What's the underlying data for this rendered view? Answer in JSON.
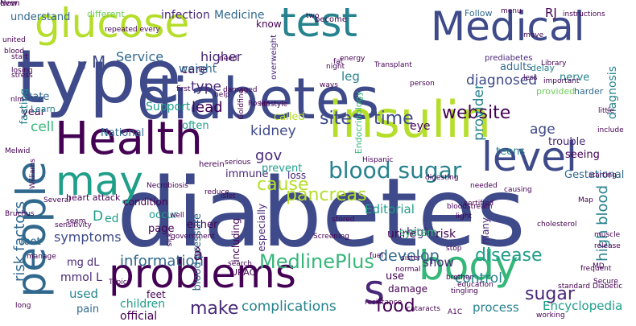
{
  "colors": {
    "background": "#ffffff",
    "purple_dark": "#440154",
    "purple": "#482878",
    "indigo": "#3e4a89",
    "blue": "#31688e",
    "teal": "#26828e",
    "green_teal": "#1f9e89",
    "green": "#35b779",
    "lime_green": "#6ece58",
    "yellow_green": "#b5de2b",
    "yellow": "#fde725"
  },
  "words": [
    {
      "text": "diabetes",
      "color": "indigo"
    },
    {
      "text": "type",
      "color": "indigo"
    },
    {
      "text": "diabetes",
      "color": "indigo"
    },
    {
      "text": "Health",
      "color": "purple_dark"
    },
    {
      "text": "insulin",
      "color": "yellow_green"
    },
    {
      "text": "glucose",
      "color": "yellow_green"
    },
    {
      "text": "test",
      "color": "teal"
    },
    {
      "text": "Medical",
      "color": "indigo"
    },
    {
      "text": "problems",
      "color": "purple_dark"
    },
    {
      "text": "body",
      "color": "green"
    },
    {
      "text": "people",
      "color": "blue"
    },
    {
      "text": "level",
      "color": "indigo"
    },
    {
      "text": "may",
      "color": "green_teal"
    },
    {
      "text": "s",
      "color": "purple"
    },
    {
      "text": "blood sugar",
      "color": "teal"
    },
    {
      "text": "website",
      "color": "purple_dark"
    },
    {
      "text": "MedlinePlus",
      "color": "green"
    },
    {
      "text": "information",
      "color": "blue"
    },
    {
      "text": "pancreas",
      "color": "yellow_green"
    },
    {
      "text": "cause",
      "color": "yellow_green"
    },
    {
      "text": "disease",
      "color": "green_teal"
    },
    {
      "text": "complications",
      "color": "teal"
    },
    {
      "text": "develop",
      "color": "blue"
    },
    {
      "text": "control",
      "color": "teal"
    },
    {
      "text": "food",
      "color": "purple_dark"
    },
    {
      "text": "risk factors",
      "color": "blue"
    },
    {
      "text": "high blood",
      "color": "teal"
    },
    {
      "text": "site",
      "color": "indigo"
    },
    {
      "text": "time",
      "color": "indigo"
    },
    {
      "text": "sugar",
      "color": "purple"
    },
    {
      "text": "make",
      "color": "purple"
    },
    {
      "text": "symptoms",
      "color": "indigo"
    },
    {
      "text": "kidney",
      "color": "indigo"
    },
    {
      "text": "leg",
      "color": "teal"
    },
    {
      "text": "diagnosed",
      "color": "indigo"
    },
    {
      "text": "higher",
      "color": "purple"
    },
    {
      "text": "Service",
      "color": "blue"
    },
    {
      "text": "type",
      "color": "purple"
    },
    {
      "text": "lead",
      "color": "purple_dark"
    },
    {
      "text": "provider",
      "color": "teal"
    },
    {
      "text": "age",
      "color": "indigo"
    },
    {
      "text": "infection",
      "color": "purple"
    },
    {
      "text": "Medicine",
      "color": "blue"
    },
    {
      "text": "care",
      "color": "purple_dark"
    },
    {
      "text": "weight",
      "color": "blue"
    },
    {
      "text": "Support",
      "color": "green_teal"
    },
    {
      "text": "gov",
      "color": "purple"
    },
    {
      "text": "Editorial",
      "color": "green_teal"
    },
    {
      "text": "used",
      "color": "teal"
    },
    {
      "text": "cell",
      "color": "green"
    },
    {
      "text": "Encyclopedia",
      "color": "green_teal"
    },
    {
      "text": "process",
      "color": "teal"
    },
    {
      "text": "children",
      "color": "green_teal"
    },
    {
      "text": "official",
      "color": "purple_dark"
    },
    {
      "text": "show",
      "color": "purple"
    },
    {
      "text": "mg dL",
      "color": "purple"
    },
    {
      "text": "mmol L",
      "color": "purple"
    },
    {
      "text": "D",
      "color": "green_teal"
    },
    {
      "text": "ed",
      "color": "green_teal"
    },
    {
      "text": "â",
      "color": "purple_dark"
    },
    {
      "text": "M",
      "color": "indigo"
    },
    {
      "text": "U",
      "color": "indigo"
    },
    {
      "text": "RJ",
      "color": "purple_dark"
    },
    {
      "text": "adults",
      "color": "blue"
    },
    {
      "text": "nerve",
      "color": "teal"
    },
    {
      "text": "diagnosis",
      "color": "teal"
    },
    {
      "text": "high",
      "color": "purple"
    },
    {
      "text": "urine",
      "color": "purple_dark"
    },
    {
      "text": "risk",
      "color": "purple_dark"
    },
    {
      "text": "system",
      "color": "green"
    },
    {
      "text": "many",
      "color": "purple"
    },
    {
      "text": "eye",
      "color": "purple_dark"
    },
    {
      "text": "teens",
      "color": "teal"
    },
    {
      "text": "trouble",
      "color": "purple"
    },
    {
      "text": "seeing",
      "color": "purple_dark"
    },
    {
      "text": "Gestational",
      "color": "blue"
    },
    {
      "text": "immune",
      "color": "purple"
    },
    {
      "text": "loss",
      "color": "purple"
    },
    {
      "text": "prevent",
      "color": "green_teal"
    },
    {
      "text": "called",
      "color": "yellow_green"
    },
    {
      "text": "National",
      "color": "blue"
    },
    {
      "text": "often",
      "color": "green_teal"
    },
    {
      "text": "year",
      "color": "purple_dark"
    },
    {
      "text": "State",
      "color": "blue"
    },
    {
      "text": "foot",
      "color": "blue"
    },
    {
      "text": "heart attack",
      "color": "purple_dark"
    },
    {
      "text": "occur",
      "color": "green_teal"
    },
    {
      "text": "page",
      "color": "purple_dark"
    },
    {
      "text": "condition",
      "color": "purple_dark"
    },
    {
      "text": "either",
      "color": "purple_dark"
    },
    {
      "text": "including",
      "color": "purple_dark"
    },
    {
      "text": "blood pressure",
      "color": "blue"
    },
    {
      "text": "especially",
      "color": "purple"
    },
    {
      "text": "use",
      "color": "purple_dark"
    },
    {
      "text": "damage",
      "color": "purple_dark"
    },
    {
      "text": "feet",
      "color": "purple_dark"
    },
    {
      "text": "pain",
      "color": "blue"
    },
    {
      "text": "URAC",
      "color": "purple_dark"
    },
    {
      "text": "understand",
      "color": "blue"
    },
    {
      "text": "different",
      "color": "lime_green"
    },
    {
      "text": "know",
      "color": "purple_dark"
    },
    {
      "text": "Follow",
      "color": "blue"
    },
    {
      "text": "become",
      "color": "purple_dark"
    },
    {
      "text": "overweight",
      "color": "purple"
    },
    {
      "text": "fasting",
      "color": "teal"
    },
    {
      "text": "Endocrinology",
      "color": "green"
    },
    {
      "text": "prediabetes",
      "color": "purple"
    },
    {
      "text": "delay",
      "color": "teal"
    },
    {
      "text": "provided",
      "color": "lime_green"
    },
    {
      "text": "harder",
      "color": "blue"
    },
    {
      "text": "Learn",
      "color": "teal"
    },
    {
      "text": "energy",
      "color": "purple_dark"
    },
    {
      "text": "Transplant",
      "color": "purple_dark"
    },
    {
      "text": "Library",
      "color": "purple_dark"
    },
    {
      "text": "instructions",
      "color": "purple_dark"
    },
    {
      "text": "menu",
      "color": "purple_dark"
    },
    {
      "text": "herein",
      "color": "purple_dark"
    },
    {
      "text": "lifestyle",
      "color": "purple_dark"
    },
    {
      "text": "Necrobiosis",
      "color": "purple_dark"
    },
    {
      "text": "Several",
      "color": "purple_dark"
    },
    {
      "text": "cholesterol",
      "color": "purple_dark"
    },
    {
      "text": "Secure",
      "color": "purple_dark"
    },
    {
      "text": "frequent",
      "color": "purple_dark"
    },
    {
      "text": "standard",
      "color": "purple_dark"
    },
    {
      "text": "release",
      "color": "purple_dark"
    },
    {
      "text": "muscle",
      "color": "purple_dark"
    },
    {
      "text": "starting",
      "color": "purple_dark"
    },
    {
      "text": "certified",
      "color": "purple_dark"
    },
    {
      "text": "bloodstream",
      "color": "purple_dark"
    },
    {
      "text": "needed",
      "color": "purple_dark"
    },
    {
      "text": "light",
      "color": "purple_dark"
    },
    {
      "text": "digesting",
      "color": "purple_dark"
    },
    {
      "text": "causing",
      "color": "purple_dark"
    },
    {
      "text": "brother",
      "color": "purple_dark"
    },
    {
      "text": "tingling",
      "color": "purple_dark"
    },
    {
      "text": "working",
      "color": "purple_dark"
    },
    {
      "text": "MD",
      "color": "purple_dark"
    },
    {
      "text": "education",
      "color": "purple_dark"
    },
    {
      "text": "sister",
      "color": "purple_dark"
    },
    {
      "text": "stop",
      "color": "purple_dark"
    },
    {
      "text": "fuel",
      "color": "purple_dark"
    },
    {
      "text": "stored",
      "color": "purple_dark"
    },
    {
      "text": "reduce",
      "color": "purple_dark"
    },
    {
      "text": "islet",
      "color": "purple_dark"
    },
    {
      "text": "search",
      "color": "purple_dark"
    },
    {
      "text": "serious",
      "color": "purple_dark"
    },
    {
      "text": "Rosen",
      "color": "purple_dark"
    },
    {
      "text": "seem",
      "color": "purple_dark"
    },
    {
      "text": "sick",
      "color": "purple_dark"
    },
    {
      "text": "sensitivity",
      "color": "purple_dark"
    },
    {
      "text": "Topics",
      "color": "purple_dark"
    },
    {
      "text": "government",
      "color": "purple_dark"
    },
    {
      "text": "cataracts",
      "color": "purple_dark"
    },
    {
      "text": "A1C",
      "color": "purple_dark"
    },
    {
      "text": "Williams",
      "color": "purple_dark"
    },
    {
      "text": "united",
      "color": "purple_dark"
    },
    {
      "text": "blood",
      "color": "purple_dark"
    },
    {
      "text": "stress",
      "color": "purple_dark"
    },
    {
      "text": "losing",
      "color": "purple_dark"
    },
    {
      "text": "start",
      "color": "purple_dark"
    },
    {
      "text": "nlm",
      "color": "purple_dark"
    },
    {
      "text": "repeated every",
      "color": "purple_dark"
    },
    {
      "text": "two",
      "color": "purple_dark"
    },
    {
      "text": "ways",
      "color": "purple_dark"
    },
    {
      "text": "night",
      "color": "purple_dark"
    },
    {
      "text": "fat",
      "color": "purple_dark"
    },
    {
      "text": "person",
      "color": "purple_dark"
    },
    {
      "text": "important",
      "color": "purple_dark"
    },
    {
      "text": "little",
      "color": "purple_dark"
    },
    {
      "text": "include",
      "color": "purple_dark"
    },
    {
      "text": "need",
      "color": "purple_dark"
    },
    {
      "text": "first",
      "color": "purple_dark"
    },
    {
      "text": "help",
      "color": "purple_dark"
    },
    {
      "text": "damaged",
      "color": "purple_dark"
    },
    {
      "text": "Goldfine",
      "color": "purple_dark"
    },
    {
      "text": "move",
      "color": "purple_dark"
    },
    {
      "text": "less",
      "color": "purple_dark"
    },
    {
      "text": "long",
      "color": "purple_dark"
    },
    {
      "text": "manage",
      "color": "purple_dark"
    },
    {
      "text": "Diabetic",
      "color": "purple_dark"
    },
    {
      "text": "Screening",
      "color": "purple_dark"
    },
    {
      "text": "resistance",
      "color": "purple_dark"
    },
    {
      "text": "normal",
      "color": "purple_dark"
    },
    {
      "text": "Map",
      "color": "purple_dark"
    },
    {
      "text": "Bruchus",
      "color": "purple_dark"
    },
    {
      "text": "Melwid",
      "color": "purple_dark"
    },
    {
      "text": "Hispanic",
      "color": "purple_dark"
    },
    {
      "text": "well",
      "color": "purple_dark"
    },
    {
      "text": "even",
      "color": "purple_dark"
    },
    {
      "text": "New",
      "color": "purple_dark"
    }
  ]
}
